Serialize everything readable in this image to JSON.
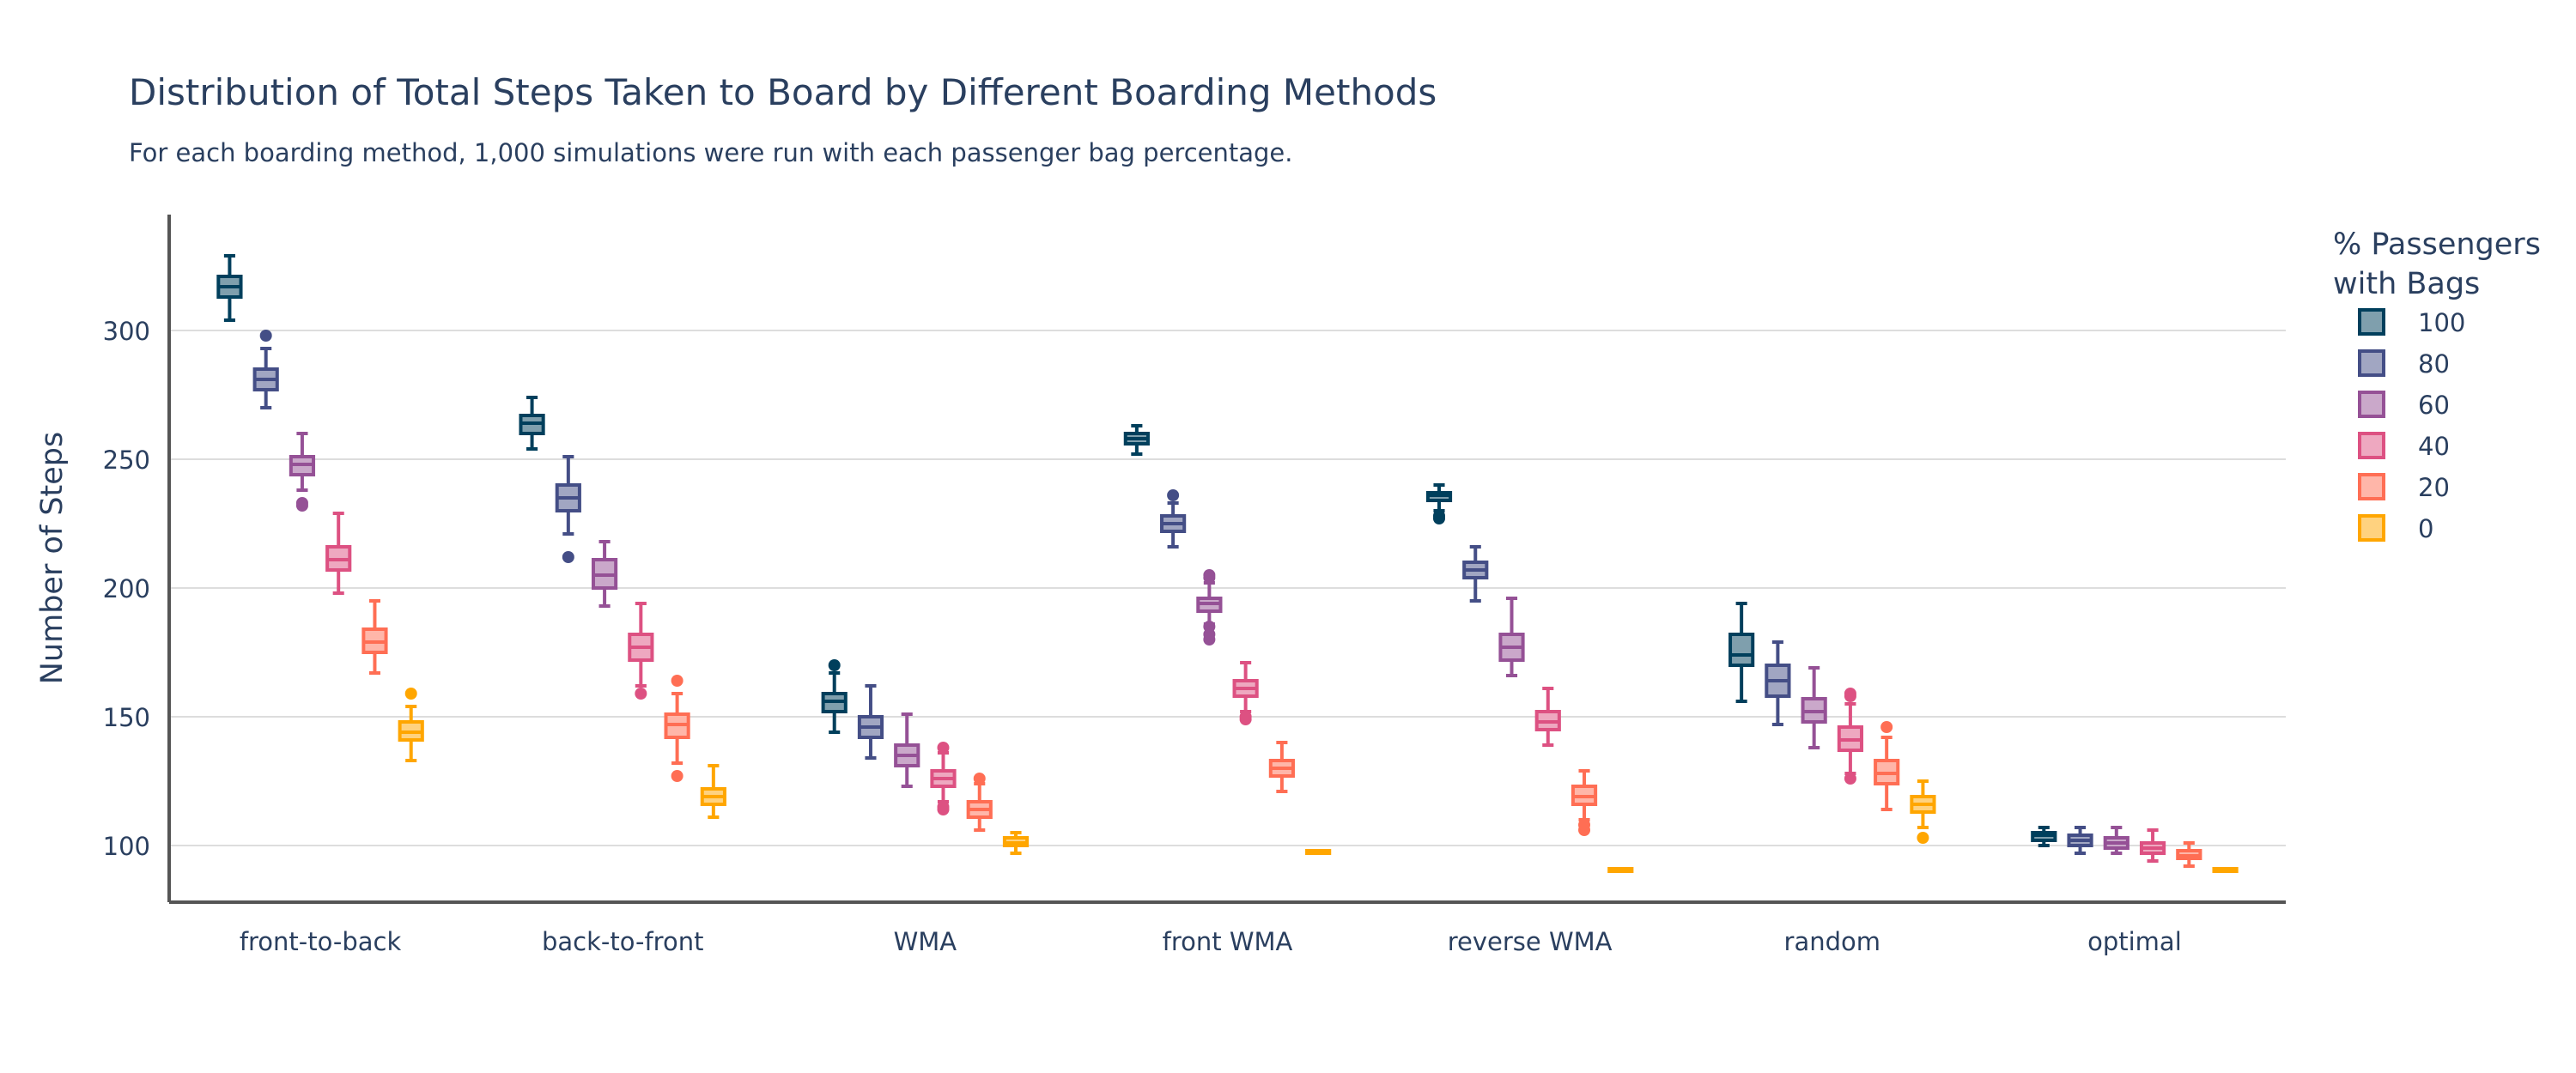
{
  "chart_data": {
    "type": "box",
    "title": "Distribution of Total Steps Taken to Board by Different Boarding Methods",
    "subtitle": "For each boarding method, 1,000 simulations were run with each passenger bag percentage.",
    "xlabel": "",
    "ylabel": "Number of Steps",
    "ylim": [
      78,
      345
    ],
    "yticks": [
      100,
      150,
      200,
      250,
      300
    ],
    "grid": true,
    "legend": {
      "title_line1": "% Passengers",
      "title_line2": "with Bags",
      "placement": "right"
    },
    "categories": [
      "front-to-back",
      "back-to-front",
      "WMA",
      "front WMA",
      "reverse WMA",
      "random",
      "optimal"
    ],
    "series": [
      {
        "name": "100",
        "color": "#003f5c",
        "fill": "#7f9fad",
        "boxes": [
          {
            "min": 304,
            "q1": 313,
            "median": 317,
            "q3": 321,
            "max": 329,
            "outliers": []
          },
          {
            "min": 254,
            "q1": 260,
            "median": 264,
            "q3": 267,
            "max": 274,
            "outliers": []
          },
          {
            "min": 144,
            "q1": 152,
            "median": 156,
            "q3": 159,
            "max": 167,
            "outliers": [
              170
            ]
          },
          {
            "min": 252,
            "q1": 256,
            "median": 258,
            "q3": 260,
            "max": 263,
            "outliers": []
          },
          {
            "min": 230,
            "q1": 234,
            "median": 236,
            "q3": 237,
            "max": 240,
            "outliers": [
              227,
              228
            ]
          },
          {
            "min": 156,
            "q1": 170,
            "median": 174,
            "q3": 182,
            "max": 194,
            "outliers": []
          },
          {
            "min": 100,
            "q1": 102,
            "median": 104,
            "q3": 105,
            "max": 107,
            "outliers": []
          }
        ]
      },
      {
        "name": "80",
        "color": "#444e86",
        "fill": "#a1a6c2",
        "boxes": [
          {
            "min": 270,
            "q1": 277,
            "median": 281,
            "q3": 285,
            "max": 293,
            "outliers": [
              298
            ]
          },
          {
            "min": 221,
            "q1": 230,
            "median": 235,
            "q3": 240,
            "max": 251,
            "outliers": [
              212
            ]
          },
          {
            "min": 134,
            "q1": 142,
            "median": 146,
            "q3": 150,
            "max": 162,
            "outliers": []
          },
          {
            "min": 216,
            "q1": 222,
            "median": 225,
            "q3": 228,
            "max": 233,
            "outliers": [
              236
            ]
          },
          {
            "min": 195,
            "q1": 204,
            "median": 207,
            "q3": 210,
            "max": 216,
            "outliers": []
          },
          {
            "min": 147,
            "q1": 158,
            "median": 164,
            "q3": 170,
            "max": 179,
            "outliers": []
          },
          {
            "min": 97,
            "q1": 100,
            "median": 102,
            "q3": 104,
            "max": 107,
            "outliers": []
          }
        ]
      },
      {
        "name": "60",
        "color": "#955196",
        "fill": "#caa8ca",
        "boxes": [
          {
            "min": 238,
            "q1": 244,
            "median": 248,
            "q3": 251,
            "max": 260,
            "outliers": [
              232,
              233
            ]
          },
          {
            "min": 193,
            "q1": 200,
            "median": 205,
            "q3": 211,
            "max": 218,
            "outliers": []
          },
          {
            "min": 123,
            "q1": 131,
            "median": 135,
            "q3": 139,
            "max": 151,
            "outliers": []
          },
          {
            "min": 186,
            "q1": 191,
            "median": 194,
            "q3": 196,
            "max": 202,
            "outliers": [
              180,
              182,
              185,
              204,
              205
            ]
          },
          {
            "min": 166,
            "q1": 172,
            "median": 177,
            "q3": 182,
            "max": 196,
            "outliers": []
          },
          {
            "min": 138,
            "q1": 148,
            "median": 152,
            "q3": 157,
            "max": 169,
            "outliers": []
          },
          {
            "min": 97,
            "q1": 99,
            "median": 101,
            "q3": 103,
            "max": 107,
            "outliers": []
          }
        ]
      },
      {
        "name": "40",
        "color": "#dd5182",
        "fill": "#eea8c0",
        "boxes": [
          {
            "min": 198,
            "q1": 207,
            "median": 211,
            "q3": 216,
            "max": 229,
            "outliers": []
          },
          {
            "min": 162,
            "q1": 172,
            "median": 177,
            "q3": 182,
            "max": 194,
            "outliers": [
              159
            ]
          },
          {
            "min": 117,
            "q1": 123,
            "median": 126,
            "q3": 129,
            "max": 136,
            "outliers": [
              114,
              115,
              138
            ]
          },
          {
            "min": 152,
            "q1": 158,
            "median": 161,
            "q3": 164,
            "max": 171,
            "outliers": [
              149,
              150
            ]
          },
          {
            "min": 139,
            "q1": 145,
            "median": 148,
            "q3": 152,
            "max": 161,
            "outliers": []
          },
          {
            "min": 128,
            "q1": 137,
            "median": 141,
            "q3": 146,
            "max": 155,
            "outliers": [
              126,
              158,
              159
            ]
          },
          {
            "min": 94,
            "q1": 97,
            "median": 99,
            "q3": 101,
            "max": 106,
            "outliers": []
          }
        ]
      },
      {
        "name": "20",
        "color": "#ff6e54",
        "fill": "#ffb6a9",
        "boxes": [
          {
            "min": 167,
            "q1": 175,
            "median": 179,
            "q3": 184,
            "max": 195,
            "outliers": []
          },
          {
            "min": 132,
            "q1": 142,
            "median": 147,
            "q3": 151,
            "max": 159,
            "outliers": [
              127,
              164
            ]
          },
          {
            "min": 106,
            "q1": 111,
            "median": 114,
            "q3": 117,
            "max": 124,
            "outliers": [
              126
            ]
          },
          {
            "min": 121,
            "q1": 127,
            "median": 130,
            "q3": 133,
            "max": 140,
            "outliers": []
          },
          {
            "min": 110,
            "q1": 116,
            "median": 119,
            "q3": 123,
            "max": 129,
            "outliers": [
              106,
              108
            ]
          },
          {
            "min": 114,
            "q1": 124,
            "median": 128,
            "q3": 133,
            "max": 142,
            "outliers": [
              146
            ]
          },
          {
            "min": 92,
            "q1": 95,
            "median": 96,
            "q3": 98,
            "max": 101,
            "outliers": []
          }
        ]
      },
      {
        "name": "0",
        "color": "#ffa600",
        "fill": "#ffd27f",
        "boxes": [
          {
            "min": 133,
            "q1": 141,
            "median": 144,
            "q3": 148,
            "max": 154,
            "outliers": [
              159
            ]
          },
          {
            "min": 111,
            "q1": 116,
            "median": 119,
            "q3": 122,
            "max": 131,
            "outliers": []
          },
          {
            "min": 97,
            "q1": 100,
            "median": 101,
            "q3": 103,
            "max": 105,
            "outliers": []
          },
          {
            "min": 98,
            "q1": 98,
            "median": 98,
            "q3": 98,
            "max": 98,
            "outliers": []
          },
          {
            "min": 91,
            "q1": 91,
            "median": 91,
            "q3": 91,
            "max": 91,
            "outliers": []
          },
          {
            "min": 107,
            "q1": 113,
            "median": 116,
            "q3": 119,
            "max": 125,
            "outliers": [
              103
            ]
          },
          {
            "min": 91,
            "q1": 91,
            "median": 91,
            "q3": 91,
            "max": 91,
            "outliers": []
          }
        ]
      }
    ]
  }
}
